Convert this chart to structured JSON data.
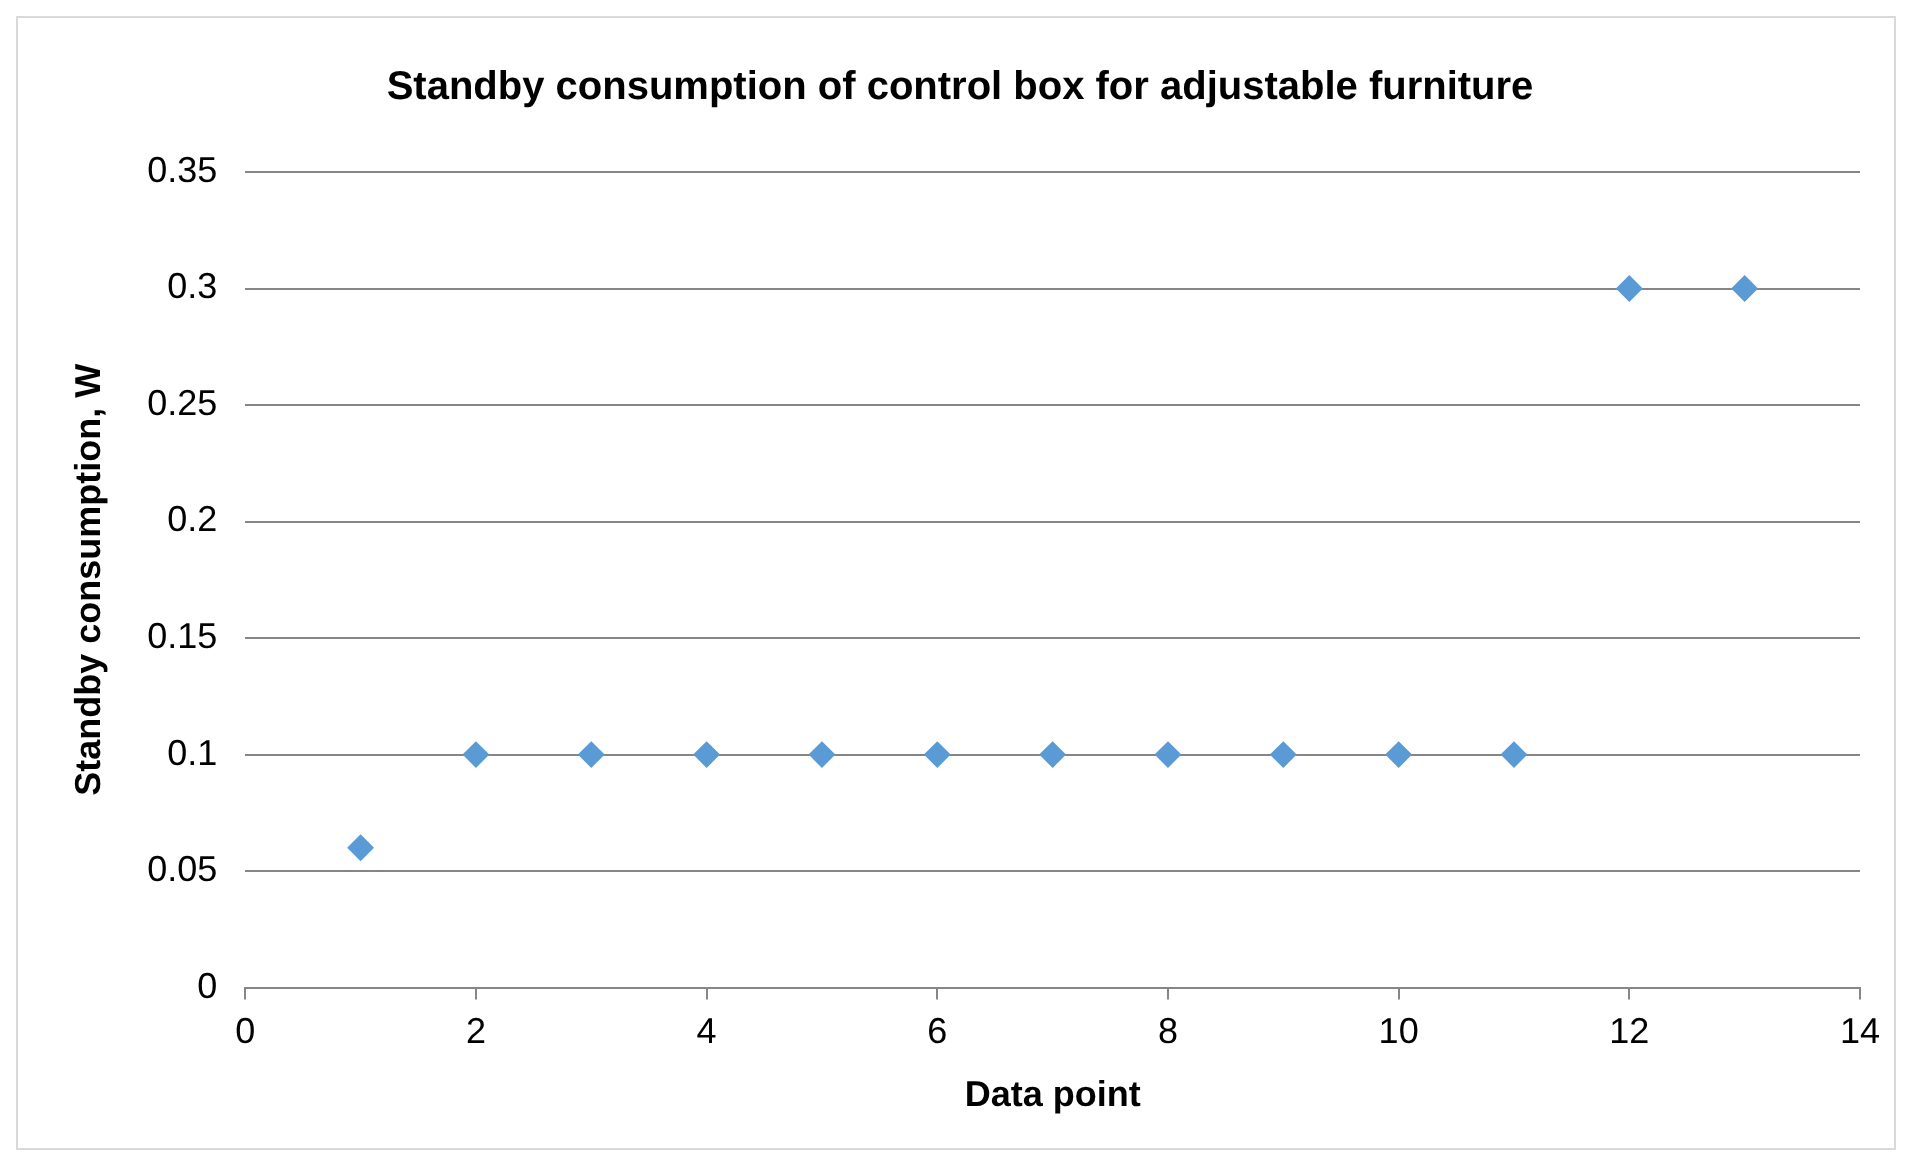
{
  "chart_data": {
    "type": "scatter",
    "title": "Standby consumption of control box for adjustable furniture",
    "xlabel": "Data point",
    "ylabel": "Standby consumption, W",
    "x": [
      1,
      2,
      3,
      4,
      5,
      6,
      7,
      8,
      9,
      10,
      11,
      12,
      13
    ],
    "series": [
      {
        "color": "#5b9bd5",
        "values": [
          0.06,
          0.1,
          0.1,
          0.1,
          0.1,
          0.1,
          0.1,
          0.1,
          0.1,
          0.1,
          0.1,
          0.3,
          0.3
        ]
      }
    ],
    "xlim": [
      0,
      14
    ],
    "xticks": [
      0,
      2,
      4,
      6,
      8,
      10,
      12,
      14
    ],
    "ylim": [
      0,
      0.35
    ],
    "yticks": [
      0,
      0.05,
      0.1,
      0.15,
      0.2,
      0.25,
      0.3,
      0.35
    ],
    "grid": "y",
    "legend": false,
    "marker": "diamond"
  }
}
